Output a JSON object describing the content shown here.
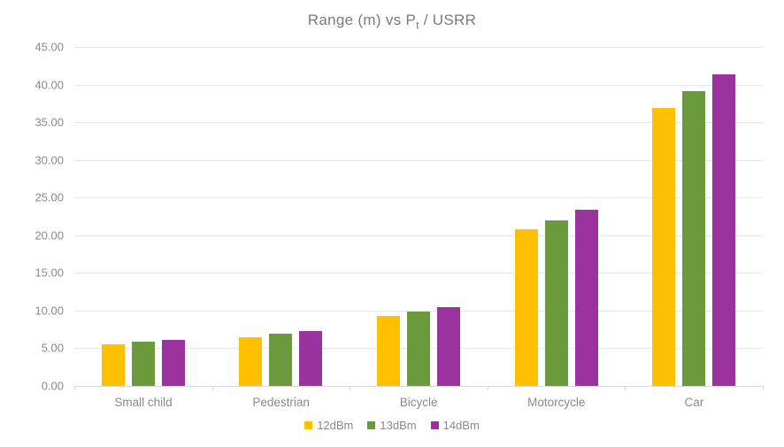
{
  "chart_data": {
    "type": "bar",
    "title": "Range (m) vs Pt / USRR",
    "title_parts": {
      "prefix": "Range (m) vs P",
      "subscript": "t",
      "suffix": " / USRR"
    },
    "categories": [
      "Small child",
      "Pedestrian",
      "Bicycle",
      "Motorcycle",
      "Car"
    ],
    "series": [
      {
        "name": "12dBm",
        "color": "#FFC000",
        "values": [
          5.5,
          6.5,
          9.3,
          20.8,
          36.9
        ]
      },
      {
        "name": "13dBm",
        "color": "#6A9A3B",
        "values": [
          5.83,
          6.89,
          9.85,
          22.03,
          39.09
        ]
      },
      {
        "name": "14dBm",
        "color": "#9B339E",
        "values": [
          6.17,
          7.29,
          10.43,
          23.34,
          41.4
        ]
      }
    ],
    "y_axis": {
      "min": 0,
      "max": 45,
      "step": 5,
      "tick_labels": [
        "0.00",
        "5.00",
        "10.00",
        "15.00",
        "20.00",
        "25.00",
        "30.00",
        "35.00",
        "40.00",
        "45.00"
      ]
    },
    "ylim": [
      0,
      45
    ],
    "xlabel": "",
    "ylabel": "",
    "grid": "horizontal",
    "legend": {
      "position": "bottom",
      "entries": [
        "12dBm",
        "13dBm",
        "14dBm"
      ]
    },
    "colors": {
      "series_12dBm": "#FFC000",
      "series_13dBm": "#6A9A3B",
      "series_14dBm": "#9B339E",
      "gridline": "#E7E7E7",
      "axis_line": "#D9D9D9",
      "text": "#8A8A8A",
      "background": "#FFFFFF"
    }
  }
}
